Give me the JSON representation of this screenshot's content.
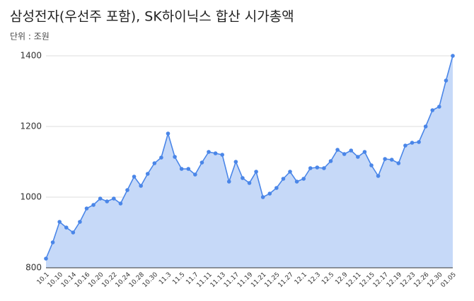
{
  "chart_data": {
    "type": "area",
    "title": "삼성전자(우선주 포함), SK하이닉스 합산 시가총액",
    "subtitle": "단위 : 조원",
    "categories": [
      "10.1",
      null,
      "10.10",
      null,
      "10.14",
      null,
      "10.16",
      null,
      "10.20",
      null,
      "10.22",
      null,
      "10.24",
      null,
      "10.28",
      null,
      "10.30",
      null,
      "11.3",
      null,
      "11.5",
      null,
      "11.7",
      null,
      "11.11",
      null,
      "11.13",
      null,
      "11.17",
      null,
      "11.19",
      null,
      "11.21",
      null,
      "11.25",
      null,
      "11.27",
      null,
      "12.1",
      null,
      "12.3",
      null,
      "12.5",
      null,
      "12.9",
      null,
      "12.11",
      null,
      "12.15",
      null,
      "12.17",
      null,
      "12.19",
      null,
      "12.23",
      null,
      "12.26",
      null,
      "12.30",
      null,
      "01.05"
    ],
    "values": [
      826,
      872,
      930,
      914,
      900,
      930,
      968,
      978,
      996,
      988,
      996,
      982,
      1020,
      1058,
      1032,
      1066,
      1096,
      1112,
      1180,
      1114,
      1080,
      1080,
      1064,
      1098,
      1128,
      1124,
      1120,
      1044,
      1100,
      1054,
      1040,
      1072,
      1000,
      1010,
      1026,
      1052,
      1072,
      1044,
      1052,
      1082,
      1084,
      1082,
      1102,
      1134,
      1122,
      1132,
      1114,
      1128,
      1090,
      1060,
      1108,
      1106,
      1096,
      1146,
      1154,
      1156,
      1200,
      1246,
      1256,
      1330,
      1400
    ],
    "color": "#4a86e8",
    "area_color": "#c6d9f8",
    "ylim": [
      800,
      1400
    ],
    "yticks": [
      800,
      1000,
      1200,
      1400
    ],
    "grid": true
  }
}
